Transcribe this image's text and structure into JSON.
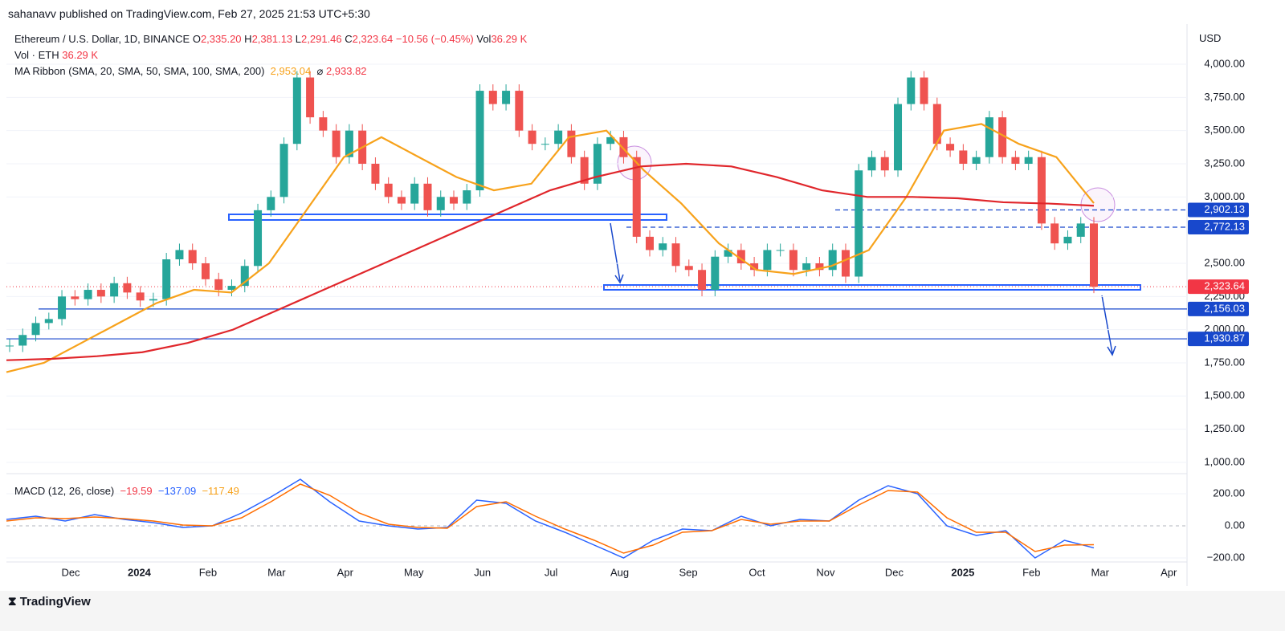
{
  "header": {
    "published": "sahanavv published on TradingView.com, Feb 27, 2025 21:53 UTC+5:30"
  },
  "legend": {
    "symbol": "Ethereum / U.S. Dollar, 1D, BINANCE",
    "o_label": "O",
    "open": "2,335.20",
    "h_label": "H",
    "high": "2,381.13",
    "l_label": "L",
    "low": "2,291.46",
    "c_label": "C",
    "close": "2,323.64",
    "change": "−10.56 (−0.45%)",
    "vol_label": "Vol",
    "vol": "36.29 K",
    "vol_line": "Vol · ETH",
    "vol_value": "36.29 K",
    "ma_line": "MA Ribbon (SMA, 20, SMA, 50, SMA, 100, SMA, 200)",
    "ma_value_1": "2,953.04",
    "ma_value_2": "2,933.82",
    "macd_line": "MACD (12, 26, close)",
    "macd_1": "−19.59",
    "macd_2": "−137.09",
    "macd_3": "−117.49"
  },
  "currency": "USD",
  "footer": {
    "brand": "TradingView"
  },
  "chart_data": {
    "type": "candlestick",
    "up_color": "#26a69a",
    "down_color": "#ef5350",
    "series": [
      {
        "name": "ETHUSD",
        "values": [
          1880,
          1960,
          2050,
          2080,
          2250,
          2230,
          2300,
          2250,
          2350,
          2280,
          2220,
          2230,
          2530,
          2600,
          2500,
          2380,
          2300,
          2330,
          2480,
          2900,
          3000,
          3400,
          3900,
          3600,
          3500,
          3300,
          3500,
          3250,
          3100,
          3000,
          2950,
          3100,
          2900,
          3000,
          2950,
          3050,
          3800,
          3700,
          3800,
          3500,
          3400,
          3400,
          3500,
          3300,
          3100,
          3400,
          3450,
          3300,
          2700,
          2600,
          2650,
          2480,
          2450,
          2300,
          2550,
          2600,
          2500,
          2450,
          2600,
          2600,
          2450,
          2500,
          2450,
          2600,
          2400,
          3200,
          3300,
          3200,
          3700,
          3900,
          3700,
          3400,
          3350,
          3250,
          3300,
          3600,
          3300,
          3250,
          3300,
          2800,
          2650,
          2700,
          2800,
          2323.64
        ]
      },
      {
        "name": "SMA 50",
        "color": "#f7a21b",
        "values": [
          1680,
          1750,
          1900,
          2050,
          2200,
          2300,
          2280,
          2500,
          2900,
          3300,
          3450,
          3300,
          3150,
          3050,
          3100,
          3450,
          3500,
          3200,
          2950,
          2650,
          2450,
          2420,
          2480,
          2600,
          3000,
          3500,
          3550,
          3400,
          3300,
          2953.04
        ]
      },
      {
        "name": "SMA 200",
        "color": "#e0262b",
        "values": [
          1770,
          1780,
          1800,
          1830,
          1900,
          2000,
          2150,
          2300,
          2450,
          2600,
          2750,
          2900,
          3050,
          3150,
          3230,
          3250,
          3230,
          3150,
          3050,
          3000,
          3000,
          2990,
          2960,
          2950,
          2933.82
        ]
      }
    ],
    "ylim": [
      900,
      4300
    ],
    "yticks": [
      {
        "value": 4000,
        "label": "4,000.00"
      },
      {
        "value": 3750,
        "label": "3,750.00"
      },
      {
        "value": 3500,
        "label": "3,500.00"
      },
      {
        "value": 3250,
        "label": "3,250.00"
      },
      {
        "value": 3000,
        "label": "3,000.00"
      },
      {
        "value": 2500,
        "label": "2,500.00"
      },
      {
        "value": 2250,
        "label": "2,250.00"
      },
      {
        "value": 2000,
        "label": "2,000.00"
      },
      {
        "value": 1750,
        "label": "1,750.00"
      },
      {
        "value": 1500,
        "label": "1,500.00"
      },
      {
        "value": 1250,
        "label": "1,250.00"
      },
      {
        "value": 1000,
        "label": "1,000.00"
      }
    ],
    "levels": [
      {
        "value": 2902.13,
        "label": "2,902.13",
        "style": "dashed",
        "color": "#1848cc"
      },
      {
        "value": 2772.13,
        "label": "2,772.13",
        "style": "dashed",
        "color": "#1848cc"
      },
      {
        "value": 2323.64,
        "label": "2,323.64",
        "style": "dotted",
        "color": "#f23645"
      },
      {
        "value": 2156.03,
        "label": "2,156.03",
        "style": "solid",
        "color": "#1848cc"
      },
      {
        "value": 1930.87,
        "label": "1,930.87",
        "style": "solid",
        "color": "#1848cc"
      }
    ],
    "macd": {
      "ylim": [
        -250,
        330
      ],
      "yticks": [
        {
          "value": 200,
          "label": "200.00"
        },
        {
          "value": 0,
          "label": "0.00"
        },
        {
          "value": -200,
          "label": "−200.00"
        }
      ],
      "series": [
        {
          "name": "MACD",
          "color": "#2962ff",
          "values": [
            40,
            60,
            30,
            70,
            40,
            20,
            -10,
            0,
            80,
            180,
            290,
            150,
            30,
            0,
            -20,
            -10,
            160,
            140,
            30,
            -40,
            -120,
            -200,
            -90,
            -20,
            -30,
            60,
            0,
            40,
            30,
            160,
            250,
            200,
            0,
            -60,
            -30,
            -200,
            -90,
            -137.09
          ]
        },
        {
          "name": "Signal",
          "color": "#ff6d00",
          "values": [
            30,
            50,
            45,
            55,
            45,
            30,
            5,
            0,
            50,
            150,
            260,
            190,
            80,
            10,
            -10,
            -15,
            120,
            150,
            60,
            -20,
            -90,
            -170,
            -120,
            -40,
            -30,
            40,
            10,
            30,
            30,
            130,
            220,
            210,
            50,
            -40,
            -40,
            -160,
            -120,
            -117.49
          ]
        }
      ]
    },
    "time_labels": [
      "Dec",
      "2024",
      "Feb",
      "Mar",
      "Apr",
      "May",
      "Jun",
      "Jul",
      "Aug",
      "Sep",
      "Oct",
      "Nov",
      "Dec",
      "2025",
      "Feb",
      "Mar",
      "Apr"
    ]
  }
}
